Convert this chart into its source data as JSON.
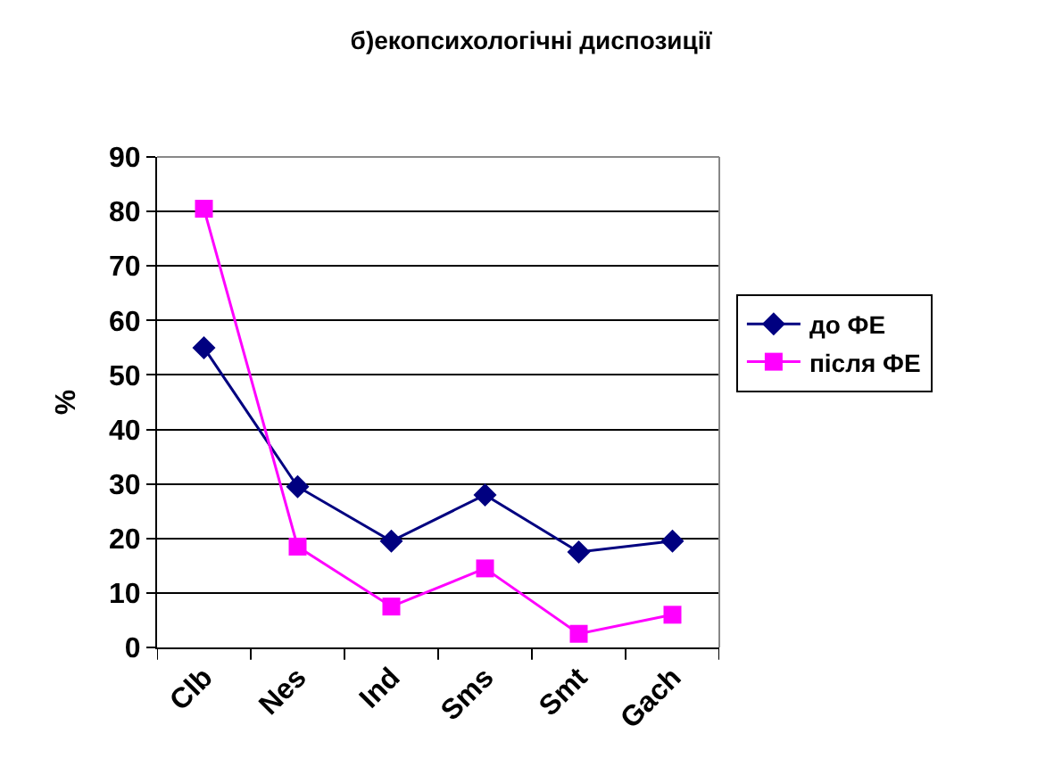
{
  "chart_data": {
    "type": "line",
    "title": "б)екопсихологічні диспозиції",
    "ylabel": "%",
    "categories": [
      "Clb",
      "Nes",
      "Ind",
      "Sms",
      "Smt",
      "Gach"
    ],
    "series": [
      {
        "name": "до ФЕ",
        "color": "#000080",
        "marker": "diamond",
        "values": [
          55,
          29.5,
          19.5,
          28,
          17.5,
          19.5
        ]
      },
      {
        "name": "після ФЕ",
        "color": "#ff00ff",
        "marker": "square",
        "values": [
          80.5,
          18.5,
          7.5,
          14.5,
          2.5,
          6
        ]
      }
    ],
    "ylim": [
      0,
      90
    ],
    "yticks": [
      0,
      10,
      20,
      30,
      40,
      50,
      60,
      70,
      80,
      90
    ],
    "grid": "y",
    "legend": "right",
    "line_style": "solid"
  }
}
